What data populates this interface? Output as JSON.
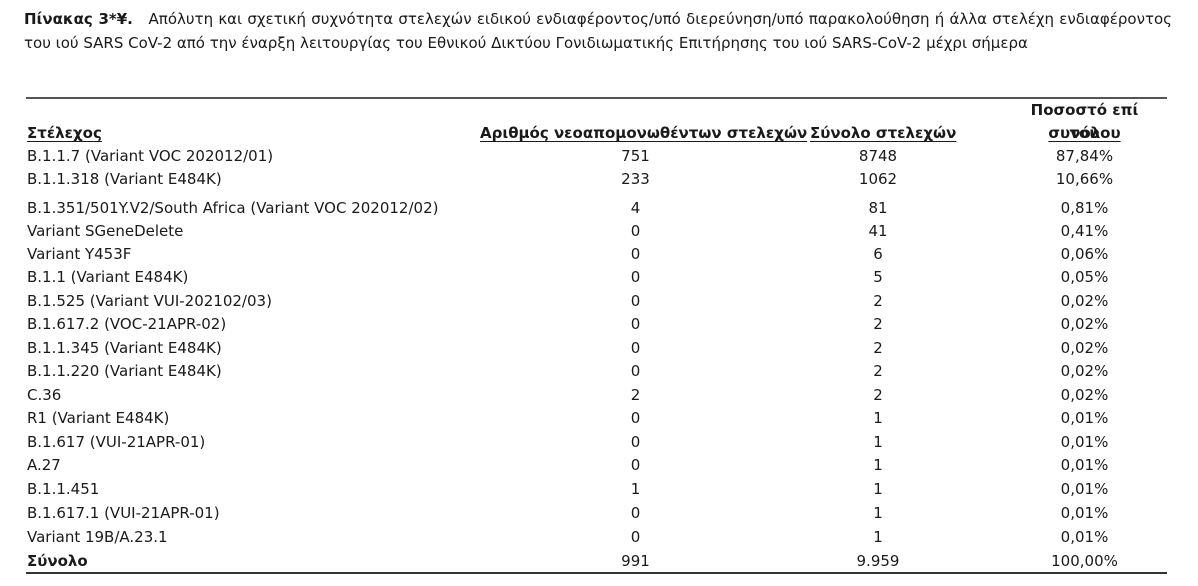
{
  "caption": {
    "label": "Πίνακας 3*¥.",
    "text": "Απόλυτη και σχετική συχνότητα στελεχών ειδικού ενδιαφέροντος/υπό διερεύνηση/υπό παρακολούθηση ή άλλα στελέχη ενδιαφέροντος του ιού SARS CoV-2 από την έναρξη λειτουργίας του Εθνικού Δικτύου Γονιδιωματικής Επιτήρησης του ιού SARS-CoV-2 μέχρι σήμερα"
  },
  "table": {
    "headers": {
      "strain": "Στέλεχος",
      "isolated": "Αριθμός νεοαπομονωθέντων στελεχών",
      "total": "Σύνολο στελεχών",
      "percent_line1": "Ποσοστό επί του",
      "percent_line2": "συνόλου"
    },
    "rows": [
      {
        "strain": "B.1.1.7 (Variant VOC 202012/01)",
        "isolated": "751",
        "total": "8748",
        "percent": "87,84%"
      },
      {
        "strain": "B.1.1.318 (Variant E484K)",
        "isolated": "233",
        "total": "1062",
        "percent": "10,66%"
      },
      {
        "strain": "B.1.351/501Y.V2/South Africa (Variant VOC 202012/02)",
        "isolated": "4",
        "total": "81",
        "percent": "0,81%"
      },
      {
        "strain": "Variant SGeneDelete",
        "isolated": "0",
        "total": "41",
        "percent": "0,41%"
      },
      {
        "strain": "Variant Y453F",
        "isolated": "0",
        "total": "6",
        "percent": "0,06%"
      },
      {
        "strain": "B.1.1 (Variant E484K)",
        "isolated": "0",
        "total": "5",
        "percent": "0,05%"
      },
      {
        "strain": "B.1.525 (Variant VUI-202102/03)",
        "isolated": "0",
        "total": "2",
        "percent": "0,02%"
      },
      {
        "strain": "B.1.617.2 (VOC-21APR-02)",
        "isolated": "0",
        "total": "2",
        "percent": "0,02%"
      },
      {
        "strain": "B.1.1.345 (Variant E484K)",
        "isolated": "0",
        "total": "2",
        "percent": "0,02%"
      },
      {
        "strain": "B.1.1.220 (Variant E484K)",
        "isolated": "0",
        "total": "2",
        "percent": "0,02%"
      },
      {
        "strain": "C.36",
        "isolated": "2",
        "total": "2",
        "percent": "0,02%"
      },
      {
        "strain": "R1 (Variant E484K)",
        "isolated": "0",
        "total": "1",
        "percent": "0,01%"
      },
      {
        "strain": "B.1.617 (VUI-21APR-01)",
        "isolated": "0",
        "total": "1",
        "percent": "0,01%"
      },
      {
        "strain": "A.27",
        "isolated": "0",
        "total": "1",
        "percent": "0,01%"
      },
      {
        "strain": "B.1.1.451",
        "isolated": "1",
        "total": "1",
        "percent": "0,01%"
      },
      {
        "strain": "B.1.617.1 (VUI-21APR-01)",
        "isolated": "0",
        "total": "1",
        "percent": "0,01%"
      },
      {
        "strain": "Variant 19B/A.23.1",
        "isolated": "0",
        "total": "1",
        "percent": "0,01%"
      }
    ],
    "total_row": {
      "strain": "Σύνολο",
      "isolated": "991",
      "total": "9.959",
      "percent": "100,00%"
    }
  }
}
